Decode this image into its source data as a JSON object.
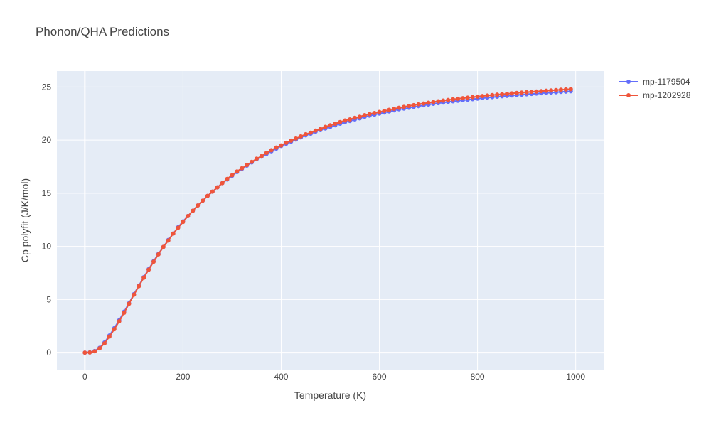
{
  "chart_data": {
    "type": "line",
    "title": "Phonon/QHA Predictions",
    "xlabel": "Temperature (K)",
    "ylabel": "Cp polyfit (J/K/mol)",
    "xlim": [
      -57,
      1057
    ],
    "ylim": [
      -1.6,
      26.5
    ],
    "x_ticks": [
      0,
      200,
      400,
      600,
      800,
      1000
    ],
    "x_tick_labels": [
      "0",
      "200",
      "400",
      "600",
      "800",
      "1000"
    ],
    "y_ticks": [
      0,
      5,
      10,
      15,
      20,
      25
    ],
    "y_tick_labels": [
      "0",
      "5",
      "10",
      "15",
      "20",
      "25"
    ],
    "grid": true,
    "legend_position": "top-right",
    "plot_bgcolor": "#E5ECF6",
    "x": [
      0,
      10,
      20,
      30,
      40,
      50,
      60,
      70,
      80,
      90,
      100,
      110,
      120,
      130,
      140,
      150,
      160,
      170,
      180,
      190,
      200,
      210,
      220,
      230,
      240,
      250,
      260,
      270,
      280,
      290,
      300,
      310,
      320,
      330,
      340,
      350,
      360,
      370,
      380,
      390,
      400,
      410,
      420,
      430,
      440,
      450,
      460,
      470,
      480,
      490,
      500,
      510,
      520,
      530,
      540,
      550,
      560,
      570,
      580,
      590,
      600,
      610,
      620,
      630,
      640,
      650,
      660,
      670,
      680,
      690,
      700,
      710,
      720,
      730,
      740,
      750,
      760,
      770,
      780,
      790,
      800,
      810,
      820,
      830,
      840,
      850,
      860,
      870,
      880,
      890,
      900,
      910,
      920,
      930,
      940,
      950,
      960,
      970,
      980,
      990
    ],
    "series": [
      {
        "name": "mp-1179504",
        "color": "#636EFA",
        "values": [
          0,
          0.02,
          0.15,
          0.45,
          0.95,
          1.6,
          2.3,
          3.05,
          3.85,
          4.65,
          5.5,
          6.3,
          7.1,
          7.85,
          8.6,
          9.3,
          9.95,
          10.6,
          11.2,
          11.8,
          12.35,
          12.85,
          13.35,
          13.85,
          14.3,
          14.75,
          15.15,
          15.55,
          15.95,
          16.3,
          16.65,
          17.0,
          17.3,
          17.6,
          17.9,
          18.2,
          18.45,
          18.7,
          18.95,
          19.2,
          19.45,
          19.65,
          19.85,
          20.05,
          20.25,
          20.45,
          20.6,
          20.8,
          20.95,
          21.1,
          21.25,
          21.4,
          21.55,
          21.7,
          21.8,
          21.95,
          22.05,
          22.2,
          22.3,
          22.4,
          22.5,
          22.6,
          22.7,
          22.8,
          22.9,
          22.97,
          23.05,
          23.13,
          23.2,
          23.28,
          23.35,
          23.42,
          23.48,
          23.54,
          23.6,
          23.66,
          23.71,
          23.76,
          23.81,
          23.86,
          23.91,
          23.96,
          24.0,
          24.05,
          24.09,
          24.13,
          24.17,
          24.21,
          24.25,
          24.28,
          24.32,
          24.35,
          24.38,
          24.42,
          24.45,
          24.48,
          24.51,
          24.54,
          24.57,
          24.6
        ]
      },
      {
        "name": "mp-1202928",
        "color": "#EF553B",
        "values": [
          0,
          0.01,
          0.12,
          0.4,
          0.87,
          1.5,
          2.2,
          2.95,
          3.75,
          4.6,
          5.45,
          6.25,
          7.05,
          7.8,
          8.55,
          9.25,
          9.95,
          10.55,
          11.2,
          11.75,
          12.3,
          12.85,
          13.35,
          13.85,
          14.3,
          14.75,
          15.15,
          15.55,
          15.95,
          16.35,
          16.7,
          17.05,
          17.35,
          17.65,
          17.95,
          18.25,
          18.5,
          18.8,
          19.05,
          19.3,
          19.5,
          19.75,
          19.95,
          20.15,
          20.35,
          20.55,
          20.7,
          20.9,
          21.05,
          21.25,
          21.4,
          21.55,
          21.7,
          21.85,
          21.95,
          22.1,
          22.2,
          22.35,
          22.45,
          22.55,
          22.65,
          22.75,
          22.85,
          22.95,
          23.05,
          23.13,
          23.22,
          23.3,
          23.38,
          23.45,
          23.52,
          23.59,
          23.66,
          23.72,
          23.78,
          23.84,
          23.9,
          23.95,
          24.0,
          24.05,
          24.1,
          24.15,
          24.2,
          24.24,
          24.28,
          24.32,
          24.36,
          24.4,
          24.44,
          24.48,
          24.51,
          24.55,
          24.58,
          24.61,
          24.65,
          24.68,
          24.71,
          24.74,
          24.77,
          24.8
        ]
      }
    ]
  }
}
